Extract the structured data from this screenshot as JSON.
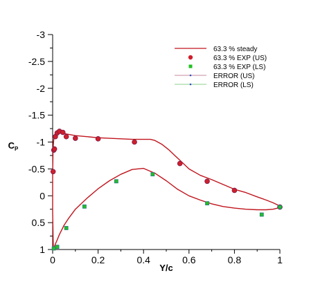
{
  "chart_data": {
    "type": "line",
    "xlabel": "Y/c",
    "ylabel_main": "C",
    "ylabel_sub": "P",
    "xlim": [
      0,
      1
    ],
    "ylim": [
      -3,
      1
    ],
    "y_inverted": true,
    "xticks": [
      0,
      0.2,
      0.4,
      0.6,
      0.8,
      1
    ],
    "xtick_labels": [
      "0",
      "0.2",
      "0.4",
      "0.6",
      "0.8",
      "1"
    ],
    "yticks": [
      -3,
      -2.5,
      -2,
      -1.5,
      -1,
      -0.5,
      0,
      0.5,
      1
    ],
    "ytick_labels": [
      "-3",
      "-2.5",
      "-2",
      "-1.5",
      "-1",
      "-0.5",
      "0",
      "0.5",
      "1"
    ],
    "grid": false,
    "legend_position": "top-right",
    "series": [
      {
        "name": "63.3 % steady",
        "kind": "line",
        "color": "#c0141c",
        "x": [
          0.003,
          0.0,
          0.0,
          0.0015,
          0.003,
          0.005,
          0.008,
          0.012,
          0.017,
          0.022,
          0.03,
          0.045,
          0.06,
          0.1,
          0.15,
          0.2,
          0.25,
          0.3,
          0.35,
          0.38,
          0.41,
          0.43,
          0.45,
          0.48,
          0.51,
          0.54,
          0.56,
          0.6,
          0.65,
          0.7,
          0.75,
          0.8,
          0.85,
          0.9,
          0.94,
          0.97,
          0.99,
          1.0,
          0.99,
          0.97,
          0.94,
          0.9,
          0.85,
          0.8,
          0.75,
          0.7,
          0.65,
          0.6,
          0.55,
          0.5,
          0.45,
          0.4,
          0.35,
          0.3,
          0.25,
          0.2,
          0.15,
          0.1,
          0.07,
          0.05,
          0.03,
          0.02,
          0.012,
          0.007,
          0.004,
          0.003
        ],
        "y": [
          1.0,
          0.3,
          -0.4,
          -0.8,
          -0.95,
          -1.05,
          -1.12,
          -1.17,
          -1.2,
          -1.22,
          -1.2,
          -1.17,
          -1.15,
          -1.12,
          -1.1,
          -1.08,
          -1.07,
          -1.06,
          -1.05,
          -1.05,
          -1.05,
          -1.05,
          -1.03,
          -0.96,
          -0.86,
          -0.74,
          -0.66,
          -0.5,
          -0.38,
          -0.3,
          -0.21,
          -0.12,
          -0.06,
          0.02,
          0.08,
          0.13,
          0.17,
          0.2,
          0.23,
          0.25,
          0.26,
          0.26,
          0.25,
          0.23,
          0.2,
          0.15,
          0.08,
          0.0,
          -0.12,
          -0.28,
          -0.42,
          -0.51,
          -0.49,
          -0.4,
          -0.28,
          -0.13,
          0.05,
          0.25,
          0.42,
          0.55,
          0.72,
          0.82,
          0.9,
          0.95,
          0.98,
          1.0
        ]
      },
      {
        "name": "63.3 % EXP (US)",
        "kind": "marker",
        "marker": "circle",
        "color": "#d01f2c",
        "x": [
          0.002,
          0.005,
          0.008,
          0.012,
          0.02,
          0.03,
          0.045,
          0.06,
          0.1,
          0.2,
          0.36,
          0.56,
          0.68,
          0.8,
          1.0
        ],
        "y": [
          -0.45,
          -0.85,
          -0.87,
          -1.1,
          -1.17,
          -1.2,
          -1.18,
          -1.1,
          -1.07,
          -1.06,
          -1.0,
          -0.6,
          -0.27,
          -0.1,
          0.21
        ]
      },
      {
        "name": "63.3 % EXP (LS)",
        "kind": "marker",
        "marker": "square",
        "color": "#22c022",
        "x": [
          0.005,
          0.02,
          0.06,
          0.14,
          0.28,
          0.44,
          0.68,
          0.92,
          1.0
        ],
        "y": [
          0.98,
          0.95,
          0.6,
          0.2,
          -0.27,
          -0.4,
          0.14,
          0.35,
          0.21
        ]
      },
      {
        "name": "ERROR  (US)",
        "kind": "errorbar",
        "color": "#c9899a",
        "x": [
          0.002,
          0.005,
          0.008,
          0.012,
          0.02,
          0.03,
          0.045,
          0.06,
          0.1,
          0.2,
          0.36,
          0.56,
          0.68,
          0.8,
          1.0
        ],
        "y": [
          -0.45,
          -0.85,
          -0.87,
          -1.1,
          -1.17,
          -1.2,
          -1.18,
          -1.1,
          -1.07,
          -1.06,
          -1.0,
          -0.6,
          -0.27,
          -0.1,
          0.21
        ],
        "err": [
          0.03,
          0.03,
          0.03,
          0.03,
          0.03,
          0.03,
          0.03,
          0.03,
          0.03,
          0.03,
          0.03,
          0.03,
          0.03,
          0.03,
          0.03
        ]
      },
      {
        "name": "ERROR  (LS)",
        "kind": "errorbar",
        "color": "#8ad08a",
        "x": [
          0.005,
          0.02,
          0.06,
          0.14,
          0.28,
          0.44,
          0.68,
          0.92,
          1.0
        ],
        "y": [
          0.98,
          0.95,
          0.6,
          0.2,
          -0.27,
          -0.4,
          0.14,
          0.35,
          0.21
        ],
        "err": [
          0.03,
          0.03,
          0.03,
          0.03,
          0.03,
          0.03,
          0.03,
          0.03,
          0.03
        ]
      }
    ]
  }
}
